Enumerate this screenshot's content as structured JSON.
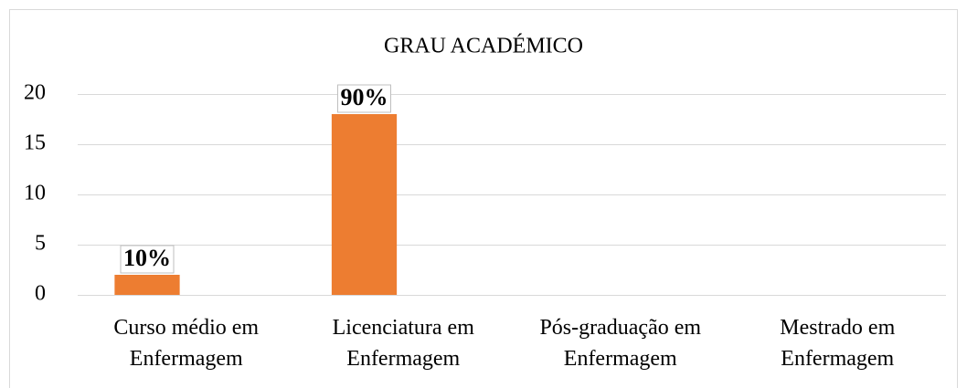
{
  "chart_data": {
    "type": "bar",
    "title": "GRAU ACADÉMICO",
    "categories": [
      "Curso médio em Enfermagem",
      "Licenciatura em Enfermagem",
      "Pós-graduação em Enfermagem",
      "Mestrado em Enfermagem"
    ],
    "values": [
      2,
      18,
      0,
      0
    ],
    "value_labels": [
      "10%",
      "90%",
      null,
      null
    ],
    "color": "#ed7d31",
    "ylim": [
      0,
      20
    ],
    "yticks": [
      0,
      5,
      10,
      15,
      20
    ],
    "grid": true
  }
}
